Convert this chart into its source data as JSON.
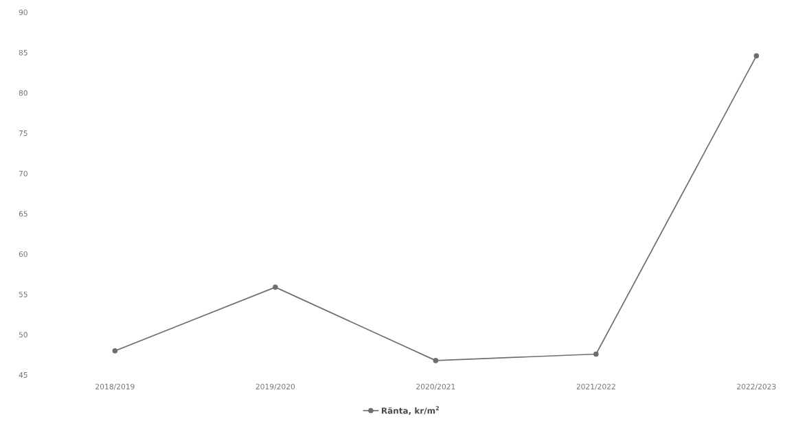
{
  "chart_data": {
    "type": "line",
    "categories": [
      "2018/2019",
      "2019/2020",
      "2020/2021",
      "2021/2022",
      "2022/2023"
    ],
    "series": [
      {
        "name": "Ränta, kr/m$^{2}$",
        "color": "#6e6e6e",
        "values": [
          48.0,
          55.9,
          46.8,
          47.6,
          84.6
        ]
      }
    ],
    "ylim": [
      45,
      90
    ],
    "yticks": [
      45,
      50,
      55,
      60,
      65,
      70,
      75,
      80,
      85,
      90
    ],
    "marker": "circle",
    "line_style": "solid",
    "legend": "bottom"
  }
}
